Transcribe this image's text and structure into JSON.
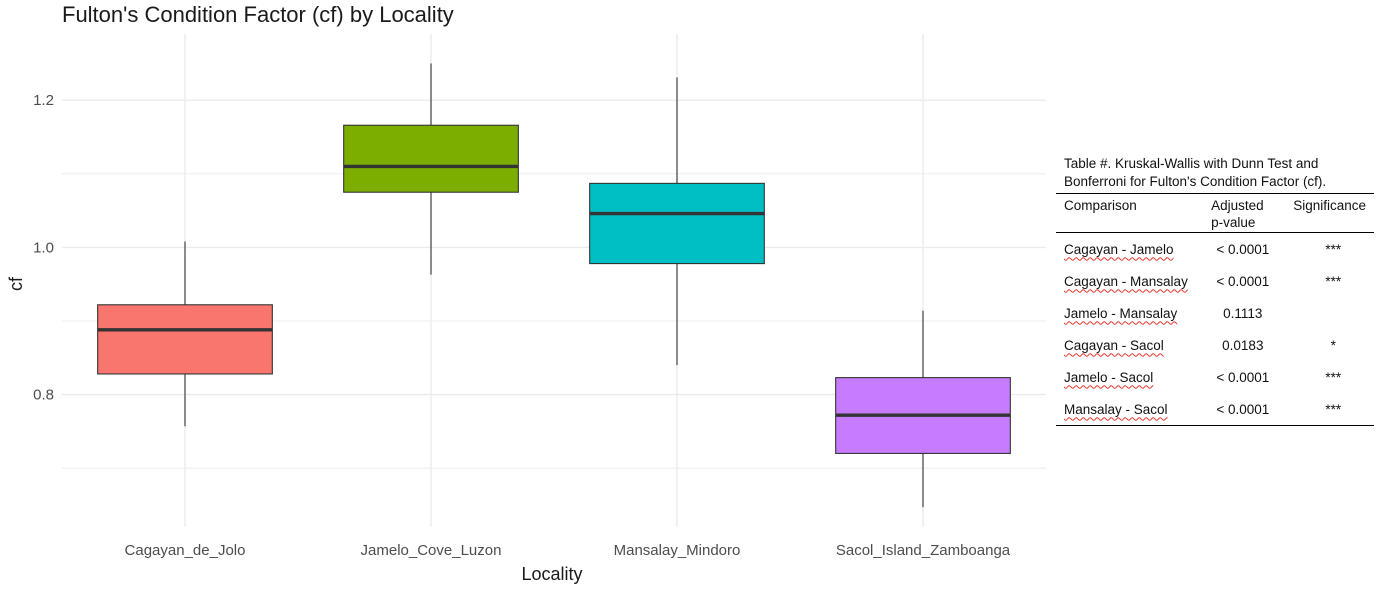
{
  "chart_data": {
    "type": "boxplot",
    "title": "Fulton's Condition Factor (cf) by Locality",
    "xlabel": "Locality",
    "ylabel": "cf",
    "ylim": [
      0.62,
      1.29
    ],
    "yticks": [
      0.8,
      1.0,
      1.2
    ],
    "ytick_labels": [
      "0.8",
      "1.0",
      "1.2"
    ],
    "grid": true,
    "categories": [
      "Cagayan_de_Jolo",
      "Jamelo_Cove_Luzon",
      "Mansalay_Mindoro",
      "Sacol_Island_Zamboanga"
    ],
    "boxes": [
      {
        "category": "Cagayan_de_Jolo",
        "min": 0.757,
        "q1": 0.828,
        "median": 0.888,
        "q3": 0.922,
        "max": 1.008,
        "color": "#F8766D"
      },
      {
        "category": "Jamelo_Cove_Luzon",
        "min": 0.963,
        "q1": 1.075,
        "median": 1.11,
        "q3": 1.166,
        "max": 1.25,
        "color": "#7CAE00"
      },
      {
        "category": "Mansalay_Mindoro",
        "min": 0.84,
        "q1": 0.978,
        "median": 1.046,
        "q3": 1.087,
        "max": 1.231,
        "color": "#00BFC4"
      },
      {
        "category": "Sacol_Island_Zamboanga",
        "min": 0.647,
        "q1": 0.72,
        "median": 0.772,
        "q3": 0.823,
        "max": 0.914,
        "color": "#C77CFF"
      }
    ]
  },
  "stats_table": {
    "caption_line1": "Table #. Kruskal-Wallis with Dunn Test and",
    "caption_line2": "Bonferroni for Fulton's Condition Factor (cf).",
    "headers": {
      "comparison": "Comparison",
      "pvalue_line1": "Adjusted",
      "pvalue_line2": "p-value",
      "significance": "Significance"
    },
    "rows": [
      {
        "comparison": "Cagayan - Jamelo",
        "pvalue": "< 0.0001",
        "significance": "***"
      },
      {
        "comparison": "Cagayan - Mansalay",
        "pvalue": "< 0.0001",
        "significance": "***"
      },
      {
        "comparison": "Jamelo - Mansalay",
        "pvalue": "0.1113",
        "significance": ""
      },
      {
        "comparison": "Cagayan - Sacol",
        "pvalue": "0.0183",
        "significance": "*"
      },
      {
        "comparison": "Jamelo -  Sacol",
        "pvalue": "< 0.0001",
        "significance": "***"
      },
      {
        "comparison": "Mansalay - Sacol",
        "pvalue": "< 0.0001",
        "significance": "***"
      }
    ]
  }
}
